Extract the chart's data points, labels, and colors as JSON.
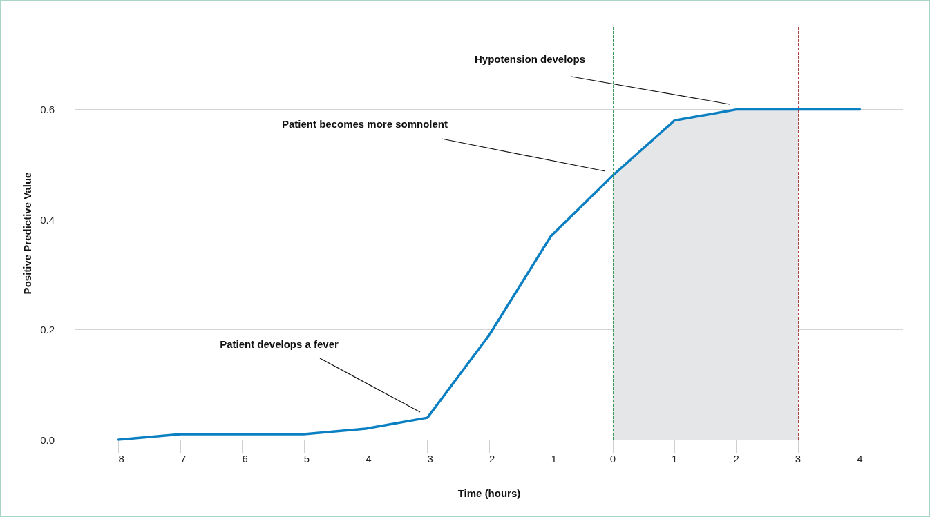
{
  "chart_data": {
    "type": "line",
    "xlabel": "Time (hours)",
    "ylabel": "Positive Predictive Value",
    "x": [
      -8,
      -7,
      -6,
      -5,
      -4,
      -3,
      -2,
      -1,
      0,
      1,
      2,
      3,
      4
    ],
    "series": [
      {
        "type": "area",
        "x": [
          0,
          1,
          2,
          3
        ],
        "values": [
          0.48,
          0.58,
          0.6,
          0.6
        ],
        "color": "#e5e6e8"
      },
      {
        "color": "#0a7fc2",
        "values": [
          0.0,
          0.01,
          0.01,
          0.01,
          0.02,
          0.04,
          0.19,
          0.37,
          0.48,
          0.58,
          0.6,
          0.6,
          0.6
        ]
      }
    ],
    "xlim": [
      -8.7,
      4.7
    ],
    "xticks": [
      {
        "value": -8,
        "label": "–8"
      },
      {
        "value": -7,
        "label": "–7"
      },
      {
        "value": -6,
        "label": "–6"
      },
      {
        "value": -5,
        "label": "–5"
      },
      {
        "value": -4,
        "label": "–4"
      },
      {
        "value": -3,
        "label": "–3"
      },
      {
        "value": -2,
        "label": "–2"
      },
      {
        "value": -1,
        "label": "–1"
      },
      0,
      1,
      2,
      3,
      4
    ],
    "ylim": [
      0,
      0.75
    ],
    "yticks": [
      {
        "value": 0,
        "label": "0.0"
      },
      0.2,
      0.4,
      0.6
    ],
    "ref_lines": [
      {
        "axis": "x",
        "value": 0,
        "color": "#3a9a5b",
        "line_style": "dashed"
      },
      {
        "axis": "x",
        "value": 3,
        "color": "#b0413e",
        "line_style": "dashed"
      }
    ],
    "annotations": [
      "Patient develops a fever",
      "Patient becomes more somnolent",
      "Hypotension develops"
    ],
    "grid": "y",
    "marker": "none",
    "line_style": "solid"
  }
}
